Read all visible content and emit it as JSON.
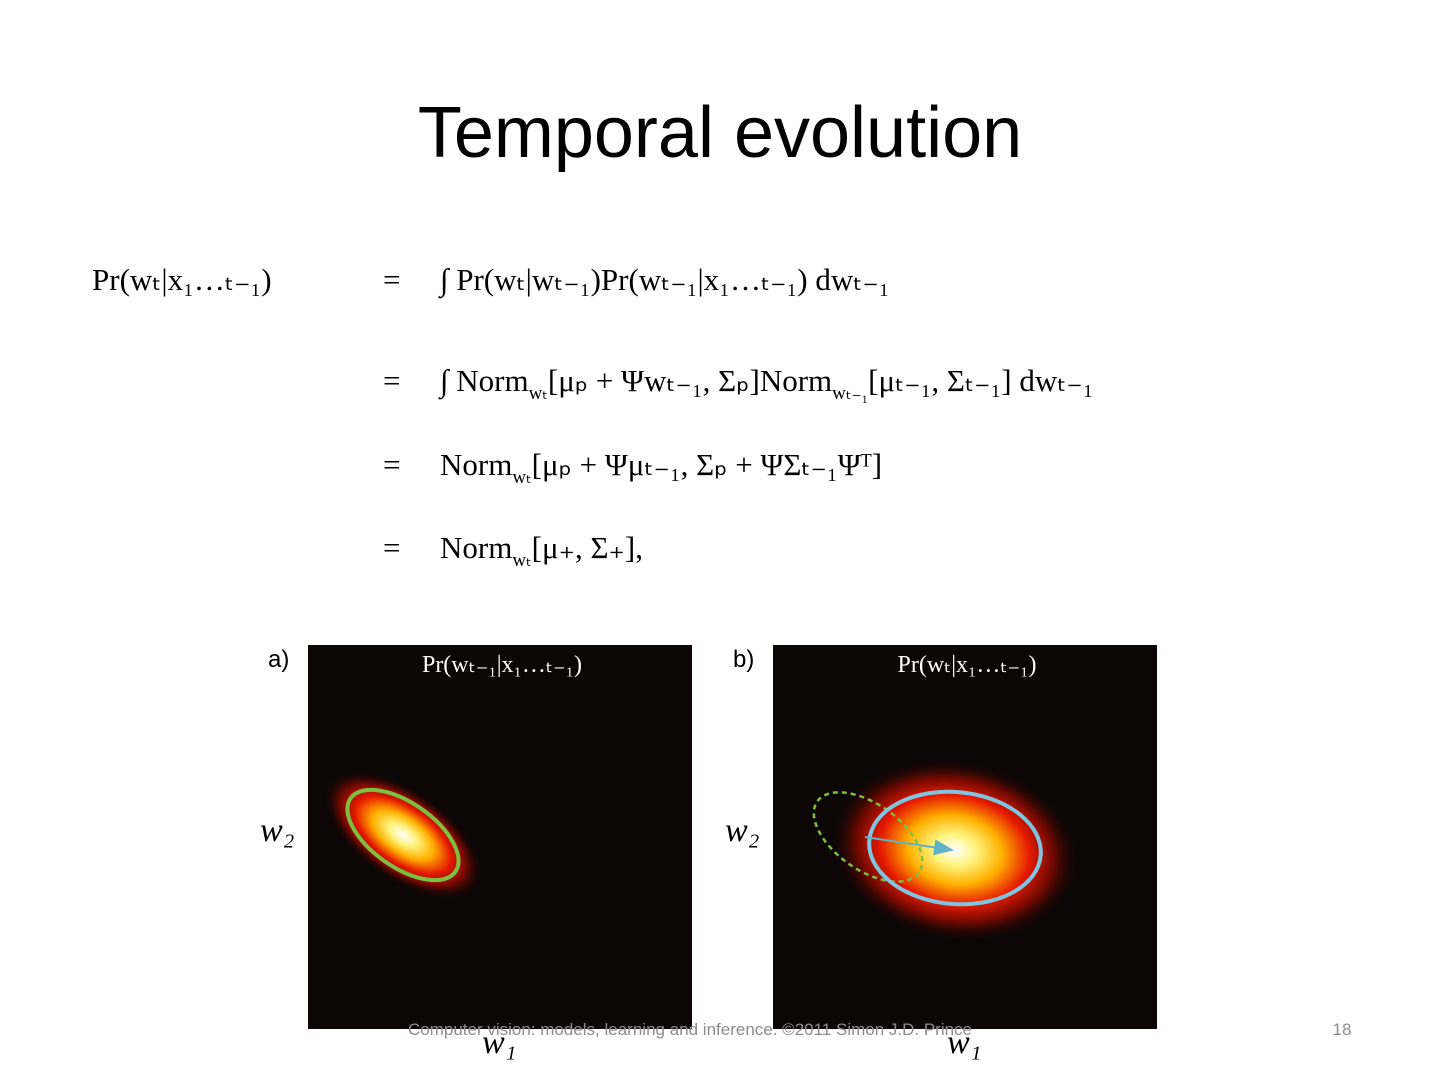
{
  "title": "Temporal evolution",
  "equations": {
    "lhs": "Pr(wₜ|x₁…ₜ₋₁)",
    "rows": [
      {
        "relation": "=",
        "pieces": [
          "∫ Pr(wₜ|wₜ₋₁)Pr(wₜ₋₁|x₁…ₜ₋₁) dwₜ₋₁"
        ]
      },
      {
        "relation": "=",
        "pieces": [
          "∫ Norm",
          "wₜ",
          "[μₚ + Ψwₜ₋₁, Σₚ]Norm",
          "wₜ₋₁",
          "[μₜ₋₁, Σₜ₋₁] dwₜ₋₁"
        ]
      },
      {
        "relation": "=",
        "pieces": [
          "Norm",
          "wₜ",
          "[μₚ + Ψμₜ₋₁, Σₚ + ΨΣₜ₋₁Ψᵀ]"
        ]
      },
      {
        "relation": "=",
        "pieces": [
          "Norm",
          "wₜ",
          "[μ₊, Σ₊],"
        ]
      }
    ]
  },
  "figures": [
    {
      "label": "a)",
      "title": "Pr(wₜ₋₁|x₁…ₜ₋₁)",
      "y_label": "w₂",
      "x_label": "w₁"
    },
    {
      "label": "b)",
      "title": "Pr(wₜ|x₁…ₜ₋₁)",
      "y_label": "w₂",
      "x_label": "w₁"
    }
  ],
  "footer": {
    "text": "Computer vision: models, learning and inference.  ©2011 Simon J.D. Prince",
    "page": "18"
  }
}
